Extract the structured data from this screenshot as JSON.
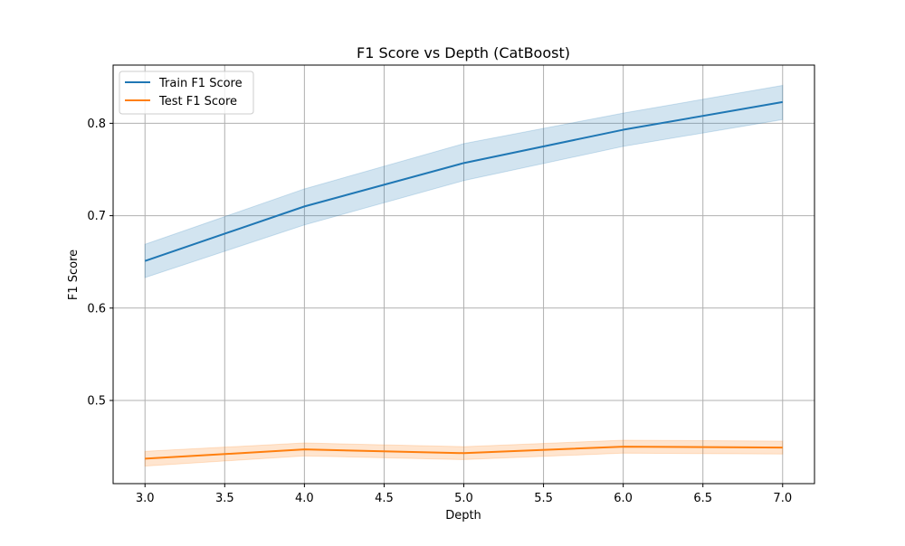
{
  "chart_data": {
    "type": "line",
    "title": "F1 Score vs Depth (CatBoost)",
    "xlabel": "Depth",
    "ylabel": "F1 Score",
    "xlim": [
      2.8,
      7.2
    ],
    "ylim": [
      0.41,
      0.863
    ],
    "x_ticks": [
      3.0,
      3.5,
      4.0,
      4.5,
      5.0,
      5.5,
      6.0,
      6.5,
      7.0
    ],
    "x_tick_labels": [
      "3.0",
      "3.5",
      "4.0",
      "4.5",
      "5.0",
      "5.5",
      "6.0",
      "6.5",
      "7.0"
    ],
    "y_ticks": [
      0.5,
      0.6,
      0.7,
      0.8
    ],
    "y_tick_labels": [
      "0.5",
      "0.6",
      "0.7",
      "0.8"
    ],
    "grid": true,
    "legend_position": "top-left",
    "x": [
      3,
      4,
      5,
      6,
      7
    ],
    "series": [
      {
        "name": "Train F1 Score",
        "color": "#1f77b4",
        "values": [
          0.651,
          0.71,
          0.757,
          0.793,
          0.823
        ],
        "lower": [
          0.633,
          0.69,
          0.738,
          0.775,
          0.804
        ],
        "upper": [
          0.669,
          0.729,
          0.778,
          0.811,
          0.841
        ]
      },
      {
        "name": "Test F1 Score",
        "color": "#ff7f0e",
        "values": [
          0.437,
          0.447,
          0.443,
          0.45,
          0.449
        ],
        "lower": [
          0.429,
          0.44,
          0.436,
          0.443,
          0.442
        ],
        "upper": [
          0.445,
          0.454,
          0.45,
          0.457,
          0.456
        ]
      }
    ]
  }
}
